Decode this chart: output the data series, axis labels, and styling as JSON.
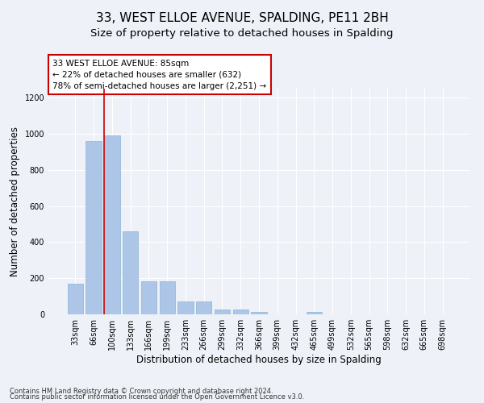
{
  "title": "33, WEST ELLOE AVENUE, SPALDING, PE11 2BH",
  "subtitle": "Size of property relative to detached houses in Spalding",
  "xlabel": "Distribution of detached houses by size in Spalding",
  "ylabel": "Number of detached properties",
  "categories": [
    "33sqm",
    "66sqm",
    "100sqm",
    "133sqm",
    "166sqm",
    "199sqm",
    "233sqm",
    "266sqm",
    "299sqm",
    "332sqm",
    "366sqm",
    "399sqm",
    "432sqm",
    "465sqm",
    "499sqm",
    "532sqm",
    "565sqm",
    "598sqm",
    "632sqm",
    "665sqm",
    "698sqm"
  ],
  "values": [
    170,
    960,
    990,
    460,
    185,
    185,
    70,
    70,
    25,
    25,
    15,
    0,
    0,
    15,
    0,
    0,
    0,
    0,
    0,
    0,
    0
  ],
  "bar_color": "#adc6e8",
  "bar_edge_color": "#8ab4d4",
  "vline_x": 1.55,
  "vline_color": "#cc0000",
  "annotation_text": "33 WEST ELLOE AVENUE: 85sqm\n← 22% of detached houses are smaller (632)\n78% of semi-detached houses are larger (2,251) →",
  "annotation_box_color": "#ffffff",
  "annotation_box_edge": "#cc0000",
  "ylim": [
    0,
    1250
  ],
  "yticks": [
    0,
    200,
    400,
    600,
    800,
    1000,
    1200
  ],
  "footnote1": "Contains HM Land Registry data © Crown copyright and database right 2024.",
  "footnote2": "Contains public sector information licensed under the Open Government Licence v3.0.",
  "bg_color": "#eef2f8",
  "plot_bg_color": "#eef2f8",
  "title_fontsize": 11,
  "subtitle_fontsize": 9.5,
  "axis_label_fontsize": 8.5,
  "tick_fontsize": 7,
  "footnote_fontsize": 6
}
